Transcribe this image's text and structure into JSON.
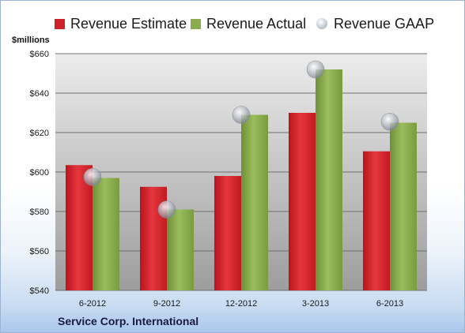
{
  "chart_data": {
    "type": "bar",
    "categories": [
      "6-2012",
      "9-2012",
      "12-2012",
      "3-2013",
      "6-2013"
    ],
    "series": [
      {
        "name": "Revenue Estimate",
        "kind": "bar",
        "color": "#d0202a",
        "values": [
          603.5,
          592.5,
          598,
          630,
          610.5
        ]
      },
      {
        "name": "Revenue Actual",
        "kind": "bar",
        "color": "#86a84a",
        "values": [
          597,
          581,
          629,
          652,
          625
        ]
      },
      {
        "name": "Revenue GAAP",
        "kind": "marker",
        "color": "#b8bcc6",
        "values": [
          597.5,
          581,
          629,
          652,
          625.5
        ]
      }
    ],
    "ylabel": "$millions",
    "ylim": [
      540,
      660
    ],
    "yticks": [
      540,
      560,
      580,
      600,
      620,
      640,
      660
    ],
    "ytick_labels": [
      "$540",
      "$560",
      "$580",
      "$600",
      "$620",
      "$640",
      "$660"
    ],
    "grid": true,
    "legend_position": "top"
  },
  "footer": {
    "company": "Service Corp. International"
  }
}
